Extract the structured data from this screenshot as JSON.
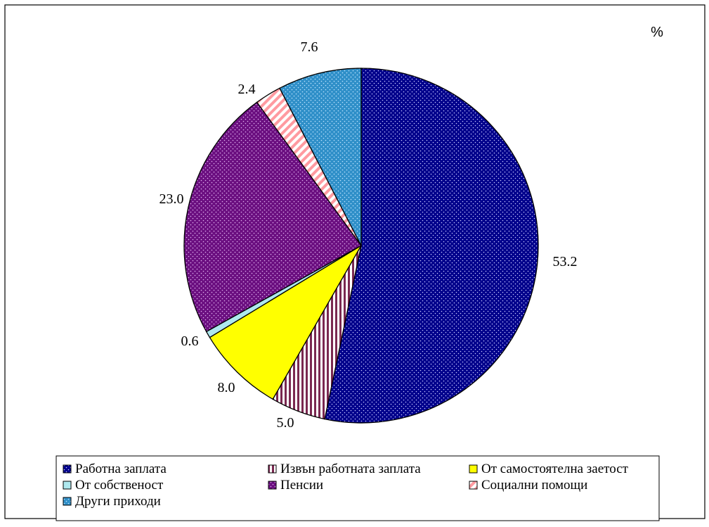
{
  "chart_data": {
    "type": "pie",
    "unit_label": "%",
    "start_angle_deg": 0,
    "direction": "clockwise",
    "legend_position": "bottom",
    "slices": [
      {
        "name": "Работна заплата",
        "value": 53.2,
        "label": "53.2",
        "color": "#00008B",
        "fg": "#c8c8ff",
        "pattern": "dots"
      },
      {
        "name": "Извън работната заплата",
        "value": 5.0,
        "label": "5.0",
        "color": "#7a2850",
        "fg": "#ffffff",
        "pattern": "vstripes"
      },
      {
        "name": "От самостоятелна заетост",
        "value": 8.0,
        "label": "8.0",
        "color": "#ffff00",
        "fg": "#ffff00",
        "pattern": "solid"
      },
      {
        "name": "От собственост",
        "value": 0.6,
        "label": "0.6",
        "color": "#aee8ee",
        "fg": "#aee8ee",
        "pattern": "solid"
      },
      {
        "name": "Пенсии",
        "value": 23.0,
        "label": "23.0",
        "color": "#6b0f80",
        "fg": "#e0b0f0",
        "pattern": "dots"
      },
      {
        "name": "Социални помощи",
        "value": 2.4,
        "label": "2.4",
        "color": "#ffffff",
        "fg": "#ff9aa0",
        "pattern": "dstripes"
      },
      {
        "name": "Други приходи",
        "value": 7.6,
        "label": "7.6",
        "color": "#2f8fc8",
        "fg": "#c0e4ff",
        "pattern": "dots"
      }
    ]
  }
}
